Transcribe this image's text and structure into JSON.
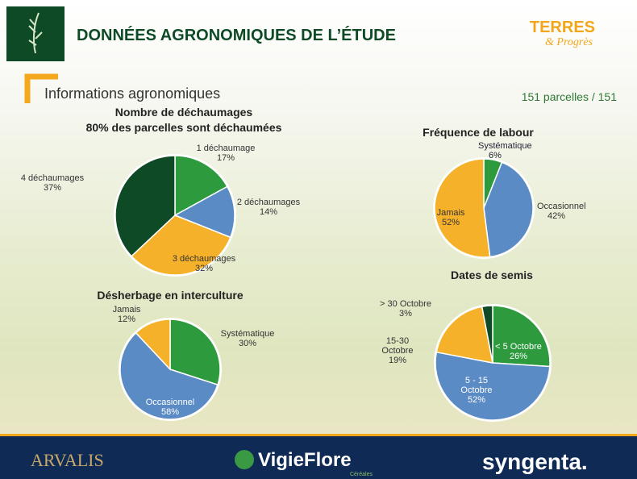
{
  "header": {
    "title": "DONNÉES AGRONOMIQUES DE L’ÉTUDE",
    "logo_top": "TERRES",
    "logo_bottom": "& Progrès",
    "section": "Informations agronomiques",
    "count": "151 parcelles / 151"
  },
  "footer": {
    "left": "ARVALIS",
    "center": "VigieFlore",
    "center_sub": "Céréales",
    "right": "syngenta."
  },
  "chart_data": [
    {
      "type": "pie",
      "title": "Nombre de déchaumages",
      "subtitle": "80% des parcelles sont déchaumées",
      "categories": [
        "1 déchaumage",
        "2 déchaumages",
        "3 déchaumages",
        "4 déchaumages"
      ],
      "values": [
        17,
        14,
        32,
        37
      ],
      "value_labels": [
        "17%",
        "14%",
        "32%",
        "37%"
      ],
      "colors": [
        "#2e9a3e",
        "#5b8bc4",
        "#f6b12a",
        "#0e4a26"
      ]
    },
    {
      "type": "pie",
      "title": "Fréquence de labour",
      "categories": [
        "Systématique",
        "Occasionnel",
        "Jamais"
      ],
      "values": [
        6,
        42,
        52
      ],
      "value_labels": [
        "6%",
        "42%",
        "52%"
      ],
      "colors": [
        "#2e9a3e",
        "#5b8bc4",
        "#f6b12a"
      ]
    },
    {
      "type": "pie",
      "title": "Désherbage en interculture",
      "categories": [
        "Systématique",
        "Occasionnel",
        "Jamais"
      ],
      "values": [
        30,
        58,
        12
      ],
      "value_labels": [
        "30%",
        "58%",
        "12%"
      ],
      "colors": [
        "#2e9a3e",
        "#5b8bc4",
        "#f6b12a"
      ]
    },
    {
      "type": "pie",
      "title": "Dates de semis",
      "categories": [
        "< 5 Octobre",
        "5 - 15 Octobre",
        "15-30 Octobre",
        "> 30 Octobre"
      ],
      "values": [
        26,
        52,
        19,
        3
      ],
      "value_labels": [
        "26%",
        "52%",
        "19%",
        "3%"
      ],
      "colors": [
        "#2e9a3e",
        "#5b8bc4",
        "#f6b12a",
        "#0e4a26"
      ]
    }
  ]
}
